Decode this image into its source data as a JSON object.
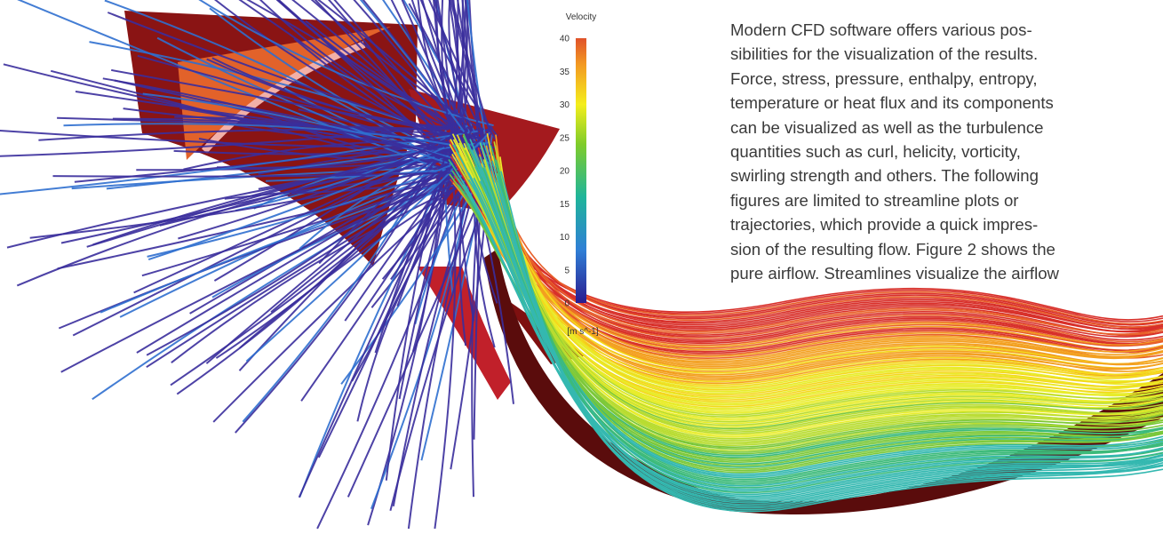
{
  "figure": {
    "legend": {
      "title": "Velocity",
      "ticks": [
        0,
        5,
        10,
        15,
        20,
        25,
        30,
        35,
        40
      ],
      "unit": "[m s^-1]"
    }
  },
  "paragraph": {
    "lines": [
      "Modern CFD software offers various pos-",
      "sibilities for the visualization of the results.",
      "Force, stress, pressure, enthalpy, entropy,",
      "temperature or heat flux and its components",
      "can be visualized as well as the turbulence",
      "quantities such as curl, helicity, vorticity,",
      "swirling strength and others. The following",
      "figures are limited to streamline plots or",
      "trajectories, which provide a quick impres-",
      "sion of the resulting flow. Figure 2 shows the",
      "pure airflow. Streamlines visualize the airflow"
    ]
  }
}
